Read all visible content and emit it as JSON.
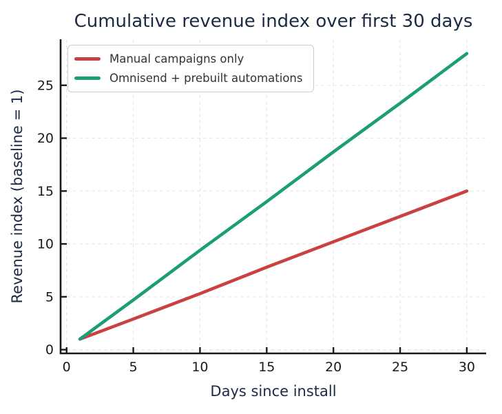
{
  "chart_data": {
    "type": "line",
    "title": "Cumulative revenue index over first 30 days",
    "xlabel": "Days since install",
    "ylabel": "Revenue index (baseline = 1)",
    "line_shape": "linear",
    "x": [
      1,
      5,
      10,
      15,
      20,
      25,
      30
    ],
    "series": [
      {
        "name": "Manual campaigns only",
        "color": "#c94141",
        "values": [
          1.0,
          2.9,
          5.3,
          7.8,
          10.2,
          12.6,
          15.0
        ]
      },
      {
        "name": "Omnisend + prebuilt automations",
        "color": "#1b9e77",
        "values": [
          1.0,
          4.7,
          9.4,
          14.0,
          18.7,
          23.3,
          28.0
        ]
      }
    ],
    "xticks": [
      0,
      5,
      10,
      15,
      20,
      25,
      30
    ],
    "yticks": [
      0,
      5,
      10,
      15,
      20,
      25
    ],
    "xlim": [
      -0.45,
      31.45
    ],
    "ylim": [
      -0.35,
      29.35
    ],
    "grid": true,
    "grid_style": "dashed",
    "legend_position": "upper-left"
  },
  "styles": {
    "title_color": "#1d2a45",
    "axis_label_color": "#1d2a45",
    "tick_label_color": "#1a1a1a",
    "spine_color": "#1a1a1a",
    "grid_color": "#e8e8e8",
    "legend_border_color": "#cccccc",
    "legend_text_color": "#333333",
    "background_color": "#ffffff"
  }
}
